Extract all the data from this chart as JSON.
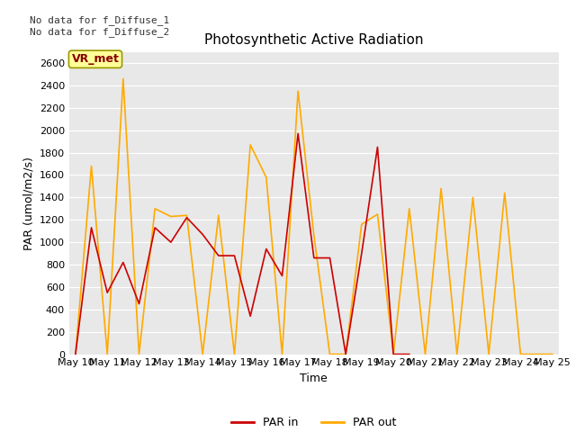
{
  "title": "Photosynthetic Active Radiation",
  "xlabel": "Time",
  "ylabel": "PAR (umol/m2/s)",
  "text_top_left": "No data for f_Diffuse_1\nNo data for f_Diffuse_2",
  "legend_box_label": "VR_met",
  "ylim": [
    0,
    2700
  ],
  "yticks": [
    0,
    200,
    400,
    600,
    800,
    1000,
    1200,
    1400,
    1600,
    1800,
    2000,
    2200,
    2400,
    2600
  ],
  "x_labels": [
    "May 10",
    "May 11",
    "May 12",
    "May 13",
    "May 14",
    "May 15",
    "May 16",
    "May 17",
    "May 18",
    "May 19",
    "May 20",
    "May 21",
    "May 22",
    "May 23",
    "May 24",
    "May 25"
  ],
  "x_positions": [
    0,
    1,
    2,
    3,
    4,
    5,
    6,
    7,
    8,
    9,
    10,
    11,
    12,
    13,
    14,
    15
  ],
  "par_in_x": [
    0,
    0.5,
    1,
    1.5,
    2,
    2.5,
    3,
    3.5,
    4,
    4.5,
    5,
    5.5,
    6,
    6.5,
    7,
    7.5,
    8,
    8.5,
    9,
    9.5,
    10,
    10.5
  ],
  "par_in_y": [
    0,
    1130,
    550,
    820,
    450,
    1130,
    1000,
    1220,
    1070,
    880,
    880,
    340,
    940,
    700,
    1970,
    860,
    860,
    0,
    900,
    1850,
    0,
    0
  ],
  "par_out_x": [
    0,
    0.5,
    1,
    1.5,
    2,
    2.5,
    3,
    3.5,
    4,
    4.5,
    5,
    5.5,
    6,
    6.5,
    7,
    7.5,
    8,
    8.5,
    9,
    9.5,
    10,
    10.5,
    11,
    11.5,
    12,
    12.5,
    13,
    13.5,
    14,
    14.5,
    15
  ],
  "par_out_y": [
    0,
    1680,
    0,
    2460,
    0,
    1300,
    1230,
    1240,
    0,
    1240,
    0,
    1870,
    1580,
    0,
    2350,
    1060,
    0,
    0,
    1160,
    1250,
    0,
    1300,
    0,
    1480,
    0,
    1400,
    0,
    1440,
    0,
    0,
    0
  ],
  "par_in_color": "#cc0000",
  "par_out_color": "#ffaa00",
  "line_width": 1.2,
  "grid_color": "#ffffff",
  "plot_bg": "#e8e8e8",
  "fig_bg": "#ffffff",
  "title_fontsize": 11,
  "tick_fontsize": 8,
  "label_fontsize": 9,
  "vr_met_facecolor": "#ffff99",
  "vr_met_edgecolor": "#999900",
  "vr_met_textcolor": "#880000"
}
